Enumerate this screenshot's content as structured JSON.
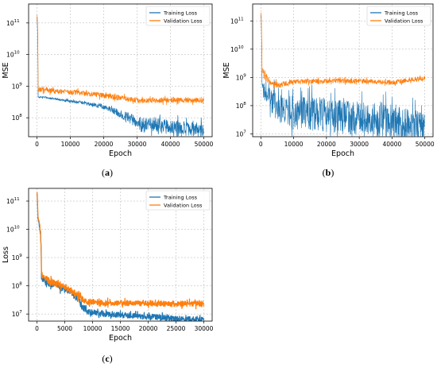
{
  "colors": {
    "training": "#1f77b4",
    "validation": "#ff7f0e"
  },
  "captions": {
    "a": {
      "open": "(",
      "letter": "a",
      "close": ")"
    },
    "b": {
      "open": "(",
      "letter": "b",
      "close": ")"
    },
    "c": {
      "open": "(",
      "letter": "c",
      "close": ")"
    }
  },
  "chart_data": [
    {
      "id": "a",
      "type": "line",
      "xlabel": "Epoch",
      "ylabel": "MSE",
      "yscale": "log",
      "xlim": [
        -2500,
        52500
      ],
      "ylim_exp": [
        7.4,
        11.6
      ],
      "xticks": [
        0,
        10000,
        20000,
        30000,
        40000,
        50000
      ],
      "xtick_labels": [
        "0",
        "10000",
        "20000",
        "30000",
        "40000",
        "50000"
      ],
      "yticks_exp": [
        8,
        9,
        10,
        11
      ],
      "ytick_labels": [
        "10",
        "10",
        "10",
        "10"
      ],
      "ytick_sups": [
        "8",
        "9",
        "10",
        "11"
      ],
      "grid": true,
      "legend": "top-right",
      "series": [
        {
          "name": "Training Loss",
          "color": "#1f77b4",
          "lw": 0.7,
          "x": [
            0,
            300,
            1000,
            5000,
            10000,
            15000,
            20000,
            25000,
            30000,
            35000,
            40000,
            45000,
            50000
          ],
          "y": [
            150000000000.0,
            450000000.0,
            460000000.0,
            400000000.0,
            330000000.0,
            280000000.0,
            220000000.0,
            130000000.0,
            70000000.0,
            58000000.0,
            52000000.0,
            46000000.0,
            40000000.0
          ],
          "noise": [
            0.02,
            0.03,
            0.03,
            0.03,
            0.04,
            0.05,
            0.07,
            0.12,
            0.2,
            0.22,
            0.22,
            0.22,
            0.22
          ]
        },
        {
          "name": "Validation Loss",
          "color": "#ff7f0e",
          "lw": 0.7,
          "x": [
            0,
            300,
            1000,
            5000,
            10000,
            15000,
            20000,
            25000,
            30000,
            35000,
            40000,
            45000,
            50000
          ],
          "y": [
            200000000000.0,
            750000000.0,
            800000000.0,
            700000000.0,
            650000000.0,
            580000000.0,
            500000000.0,
            430000000.0,
            350000000.0,
            350000000.0,
            360000000.0,
            360000000.0,
            350000000.0
          ],
          "noise": [
            0.05,
            0.08,
            0.08,
            0.08,
            0.08,
            0.08,
            0.08,
            0.08,
            0.08,
            0.08,
            0.08,
            0.08,
            0.08
          ]
        }
      ]
    },
    {
      "id": "b",
      "type": "line",
      "xlabel": "Epoch",
      "ylabel": "MSE",
      "yscale": "log",
      "xlim": [
        -2500,
        52500
      ],
      "ylim_exp": [
        6.9,
        11.6
      ],
      "xticks": [
        0,
        10000,
        20000,
        30000,
        40000,
        50000
      ],
      "xtick_labels": [
        "0",
        "10000",
        "20000",
        "30000",
        "40000",
        "50000"
      ],
      "yticks_exp": [
        7,
        8,
        9,
        10,
        11
      ],
      "ytick_labels": [
        "10",
        "10",
        "10",
        "10",
        "10"
      ],
      "ytick_sups": [
        "7",
        "8",
        "9",
        "10",
        "11"
      ],
      "grid": true,
      "legend": "top-right",
      "series": [
        {
          "name": "Training Loss",
          "color": "#1f77b4",
          "lw": 0.6,
          "x": [
            0,
            300,
            1000,
            3000,
            6000,
            10000,
            15000,
            20000,
            25000,
            30000,
            35000,
            40000,
            45000,
            50000
          ],
          "y": [
            180000000000.0,
            600000000.0,
            350000000.0,
            150000000.0,
            70000000.0,
            55000000.0,
            50000000.0,
            45000000.0,
            40000000.0,
            35000000.0,
            30000000.0,
            25000000.0,
            20000000.0,
            16000000.0
          ],
          "noise": [
            0.05,
            0.15,
            0.25,
            0.45,
            0.55,
            0.6,
            0.6,
            0.6,
            0.6,
            0.6,
            0.6,
            0.6,
            0.6,
            0.6
          ]
        },
        {
          "name": "Validation Loss",
          "color": "#ff7f0e",
          "lw": 0.7,
          "x": [
            0,
            300,
            1000,
            3000,
            6000,
            10000,
            20000,
            30000,
            40000,
            45000,
            50000
          ],
          "y": [
            220000000000.0,
            2000000000.0,
            1200000000.0,
            600000000.0,
            550000000.0,
            700000000.0,
            750000000.0,
            750000000.0,
            650000000.0,
            800000000.0,
            900000000.0
          ],
          "noise": [
            0.05,
            0.15,
            0.15,
            0.1,
            0.1,
            0.08,
            0.08,
            0.08,
            0.08,
            0.08,
            0.08
          ]
        }
      ]
    },
    {
      "id": "c",
      "type": "line",
      "xlabel": "Epoch",
      "ylabel": "Loss",
      "yscale": "log",
      "xlim": [
        -1500,
        31500
      ],
      "ylim_exp": [
        6.75,
        11.45
      ],
      "xticks": [
        0,
        5000,
        10000,
        15000,
        20000,
        25000,
        30000
      ],
      "xtick_labels": [
        "0",
        "5000",
        "10000",
        "15000",
        "20000",
        "25000",
        "30000"
      ],
      "yticks_exp": [
        7,
        8,
        9,
        10,
        11
      ],
      "ytick_labels": [
        "10",
        "10",
        "10",
        "10",
        "10"
      ],
      "ytick_sups": [
        "7",
        "8",
        "9",
        "10",
        "11"
      ],
      "grid": true,
      "legend": "top-right",
      "series": [
        {
          "name": "Training Loss",
          "color": "#1f77b4",
          "lw": 1.2,
          "x": [
            0,
            150,
            400,
            800,
            2000,
            4000,
            6000,
            8000,
            9000,
            12000,
            16000,
            20000,
            25000,
            30000
          ],
          "y": [
            200000000000.0,
            25000000000.0,
            15000000000.0,
            200000000.0,
            130000000.0,
            90000000.0,
            60000000.0,
            20000000.0,
            12000000.0,
            10000000.0,
            9000000.0,
            8000000.0,
            7000000.0,
            6000000.0
          ],
          "noise": [
            0.05,
            0.05,
            0.05,
            0.1,
            0.12,
            0.12,
            0.12,
            0.12,
            0.1,
            0.1,
            0.1,
            0.1,
            0.1,
            0.1
          ]
        },
        {
          "name": "Validation Loss",
          "color": "#ff7f0e",
          "lw": 1.2,
          "x": [
            0,
            150,
            400,
            800,
            2000,
            4000,
            6000,
            8000,
            9000,
            12000,
            16000,
            20000,
            25000,
            30000
          ],
          "y": [
            230000000000.0,
            28000000000.0,
            18000000000.0,
            250000000.0,
            150000000.0,
            110000000.0,
            70000000.0,
            35000000.0,
            28000000.0,
            25000000.0,
            24000000.0,
            24000000.0,
            23000000.0,
            23000000.0
          ],
          "noise": [
            0.05,
            0.05,
            0.05,
            0.12,
            0.12,
            0.12,
            0.12,
            0.12,
            0.1,
            0.1,
            0.1,
            0.1,
            0.1,
            0.1
          ]
        }
      ]
    }
  ]
}
